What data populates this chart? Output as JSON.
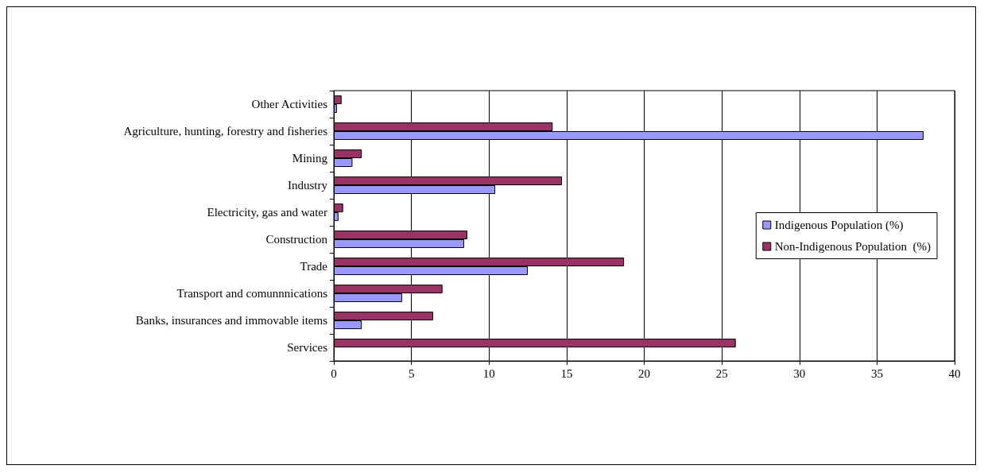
{
  "chart_data": {
    "type": "bar",
    "orientation": "horizontal",
    "categories": [
      "Other Activities",
      "Agriculture, hunting, forestry and fisheries",
      "Mining",
      "Industry",
      "Electricity, gas and water",
      "Construction",
      "Trade",
      "Transport and comunnnications",
      "Banks, insurances and immovable items",
      "Services"
    ],
    "series": [
      {
        "name": "Indigenous Population (%)",
        "color": "#9999ff",
        "values": [
          0.2,
          38,
          1.2,
          10.4,
          0.3,
          8.4,
          12.5,
          4.4,
          1.8,
          null
        ]
      },
      {
        "name": "Non-Indigenous Population  (%)",
        "color": "#993366",
        "values": [
          0.5,
          14.1,
          1.8,
          14.7,
          0.6,
          8.6,
          18.7,
          7,
          6.4,
          25.9
        ]
      }
    ],
    "xlim": [
      0,
      40
    ],
    "xticks": [
      0,
      5,
      10,
      15,
      20,
      25,
      30,
      35,
      40
    ],
    "grid": "x",
    "legend": "right"
  }
}
